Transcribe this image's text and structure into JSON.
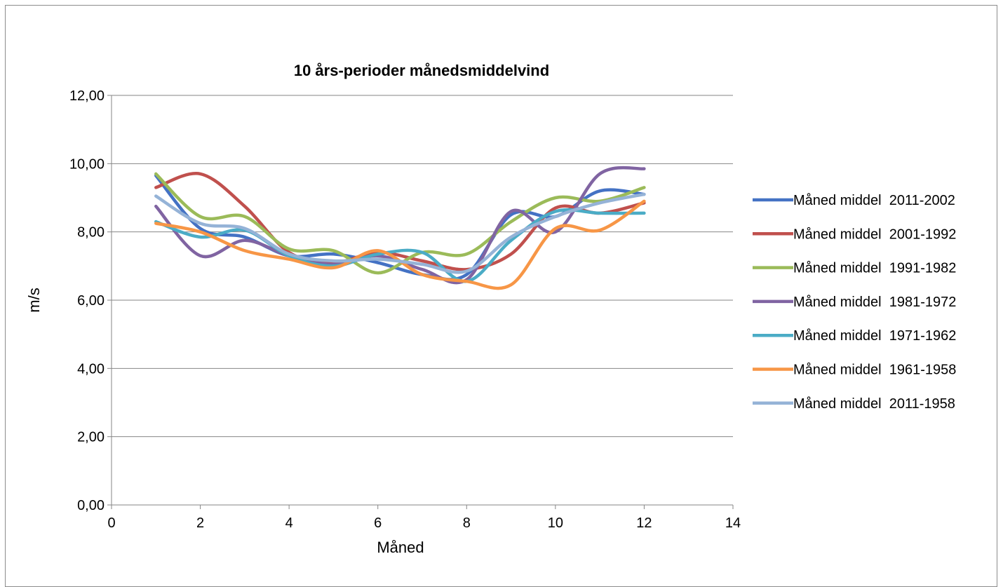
{
  "chart_data": {
    "type": "line",
    "title": "10 års-perioder månedsmiddelvind",
    "xlabel": "Måned",
    "ylabel": "m/s",
    "xlim": [
      0,
      14
    ],
    "ylim": [
      0,
      12
    ],
    "x_ticks": [
      "0",
      "2",
      "4",
      "6",
      "8",
      "10",
      "12",
      "14"
    ],
    "y_ticks": [
      "0,00",
      "2,00",
      "4,00",
      "6,00",
      "8,00",
      "10,00",
      "12,00"
    ],
    "grid": "horizontal",
    "legend_position": "right",
    "x": [
      1,
      2,
      3,
      4,
      5,
      6,
      7,
      8,
      9,
      10,
      11,
      12
    ],
    "series": [
      {
        "name": "Måned middel  2011-2002",
        "color": "#4472C4",
        "values": [
          9.65,
          8.1,
          7.85,
          7.3,
          7.35,
          7.1,
          6.75,
          6.75,
          8.5,
          8.45,
          9.2,
          9.1
        ]
      },
      {
        "name": "Måned middel  2001-1992",
        "color": "#C0504D",
        "values": [
          9.3,
          9.7,
          8.75,
          7.4,
          7.1,
          7.4,
          7.15,
          6.9,
          7.35,
          8.7,
          8.55,
          8.85
        ]
      },
      {
        "name": "Måned middel  1991-1982",
        "color": "#9BBB59",
        "values": [
          9.7,
          8.45,
          8.45,
          7.5,
          7.45,
          6.8,
          7.4,
          7.35,
          8.3,
          9.0,
          8.9,
          9.3
        ]
      },
      {
        "name": "Måned middel  1981-1972",
        "color": "#8064A2",
        "values": [
          8.75,
          7.3,
          7.75,
          7.3,
          7.05,
          7.3,
          6.9,
          6.6,
          8.6,
          8.0,
          9.7,
          9.85
        ]
      },
      {
        "name": "Måned middel  1971-1962",
        "color": "#4BACC6",
        "values": [
          8.3,
          7.85,
          8.05,
          7.3,
          7.0,
          7.35,
          7.4,
          6.55,
          7.75,
          8.6,
          8.55,
          8.55
        ]
      },
      {
        "name": "Måned middel  1961-1958",
        "color": "#F79646",
        "values": [
          8.25,
          8.0,
          7.45,
          7.2,
          6.95,
          7.45,
          6.75,
          6.55,
          6.45,
          8.1,
          8.05,
          8.9
        ]
      },
      {
        "name": "Måned middel  2011-1958",
        "color": "#95B3D7",
        "values": [
          9.05,
          8.25,
          8.1,
          7.35,
          7.15,
          7.2,
          7.05,
          6.85,
          7.85,
          8.45,
          8.85,
          9.1
        ]
      }
    ]
  }
}
